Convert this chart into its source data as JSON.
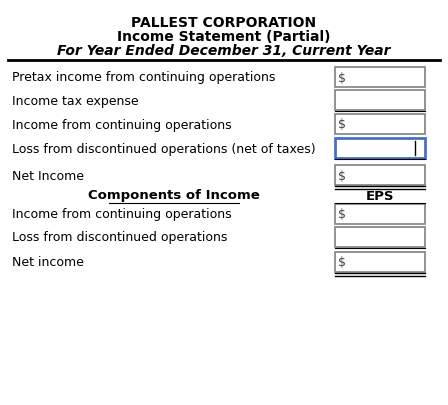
{
  "title_line1": "PALLEST CORPORATION",
  "title_line2": "Income Statement (Partial)",
  "title_line3": "For Year Ended December 31, Current Year",
  "bg_color": "#ffffff",
  "header_underline_color": "#000000",
  "box_edge_color": "#808080",
  "blue_box_edge_color": "#4472C4",
  "rows": [
    {
      "label": "Pretax income from continuing operations",
      "has_dollar": true,
      "box_style": "normal",
      "underline": false
    },
    {
      "label": "Income tax expense",
      "has_dollar": false,
      "box_style": "normal",
      "underline": true
    },
    {
      "label": "Income from continuing operations",
      "has_dollar": true,
      "box_style": "normal",
      "underline": false
    },
    {
      "label": "Loss from discontinued operations (net of taxes)",
      "has_dollar": false,
      "box_style": "blue",
      "underline": true
    },
    {
      "label": "Net Income",
      "has_dollar": true,
      "box_style": "normal",
      "underline": true
    }
  ],
  "section2_label": "Components of Income",
  "section2_right": "EPS",
  "rows2": [
    {
      "label": "Income from continuing operations",
      "has_dollar": true,
      "box_style": "normal",
      "underline": false
    },
    {
      "label": "Loss from discontinued operations",
      "has_dollar": false,
      "box_style": "normal",
      "underline": true
    },
    {
      "label": "Net income",
      "has_dollar": true,
      "box_style": "normal",
      "underline": true
    }
  ],
  "figsize": [
    4.48,
    4.06
  ],
  "dpi": 100
}
